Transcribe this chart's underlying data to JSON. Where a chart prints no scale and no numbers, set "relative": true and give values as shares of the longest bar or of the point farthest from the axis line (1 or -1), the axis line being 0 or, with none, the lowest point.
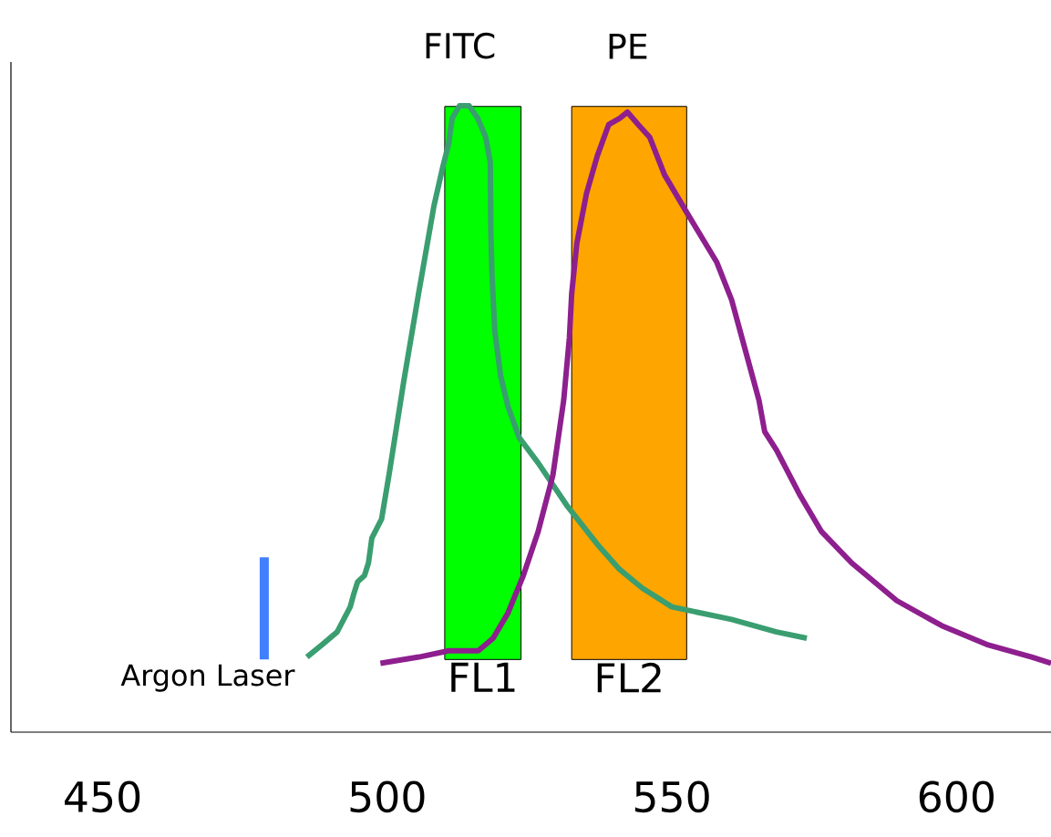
{
  "chart_data": {
    "type": "line",
    "relative": true,
    "xlim": [
      433.9,
      616.6
    ],
    "xticks": [
      450,
      500,
      550,
      600
    ],
    "series": [
      {
        "name": "FITC",
        "color": "#3a9e70",
        "x": [
          485.9,
          488.6,
          491.2,
          493.5,
          494.1,
          494.8,
          496.0,
          496.7,
          497.3,
          499.0,
          500.3,
          502.9,
          505.5,
          508.2,
          509.7,
          510.8,
          511.4,
          512.7,
          514.4,
          515.9,
          517.3,
          518.1,
          518.2,
          518.4,
          518.9,
          519.9,
          521.2,
          523.2,
          526.5,
          531.7,
          536.9,
          540.8,
          544.8,
          550.0,
          560.5,
          568.4,
          573.7
        ],
        "values": [
          0.12,
          0.14,
          0.16,
          0.2,
          0.22,
          0.24,
          0.25,
          0.27,
          0.31,
          0.34,
          0.41,
          0.56,
          0.7,
          0.84,
          0.9,
          0.94,
          0.98,
          1.0,
          1.0,
          0.98,
          0.95,
          0.91,
          0.8,
          0.73,
          0.64,
          0.57,
          0.52,
          0.47,
          0.43,
          0.36,
          0.3,
          0.26,
          0.23,
          0.2,
          0.18,
          0.16,
          0.15
        ]
      },
      {
        "name": "PE",
        "color": "#8e1f8e",
        "x": [
          498.8,
          505.6,
          510.8,
          516.0,
          518.6,
          521.2,
          523.9,
          526.5,
          529.1,
          531.0,
          532.0,
          532.4,
          533.3,
          535.0,
          536.9,
          538.9,
          540.8,
          542.2,
          544.1,
          546.1,
          548.7,
          552.6,
          557.9,
          560.5,
          563.2,
          565.3,
          566.3,
          568.4,
          572.4,
          576.3,
          581.6,
          589.5,
          597.4,
          605.3,
          613.2,
          616.6
        ],
        "values": [
          0.11,
          0.12,
          0.13,
          0.13,
          0.15,
          0.19,
          0.25,
          0.32,
          0.41,
          0.53,
          0.63,
          0.7,
          0.78,
          0.86,
          0.92,
          0.97,
          0.98,
          0.99,
          0.97,
          0.95,
          0.89,
          0.83,
          0.75,
          0.69,
          0.6,
          0.53,
          0.48,
          0.45,
          0.38,
          0.32,
          0.27,
          0.21,
          0.17,
          0.14,
          0.12,
          0.11
        ]
      }
    ],
    "bands": [
      {
        "axis": "x",
        "from": 510.1,
        "to": 523.5,
        "label": "FL1",
        "color": "#00ff00"
      },
      {
        "axis": "x",
        "from": 532.4,
        "to": 552.6,
        "label": "FL2",
        "color": "#ffa500"
      }
    ],
    "ref_lines": [
      {
        "axis": "x",
        "value": 478.4,
        "label": "Argon Laser",
        "color": "#4080ff"
      }
    ]
  }
}
